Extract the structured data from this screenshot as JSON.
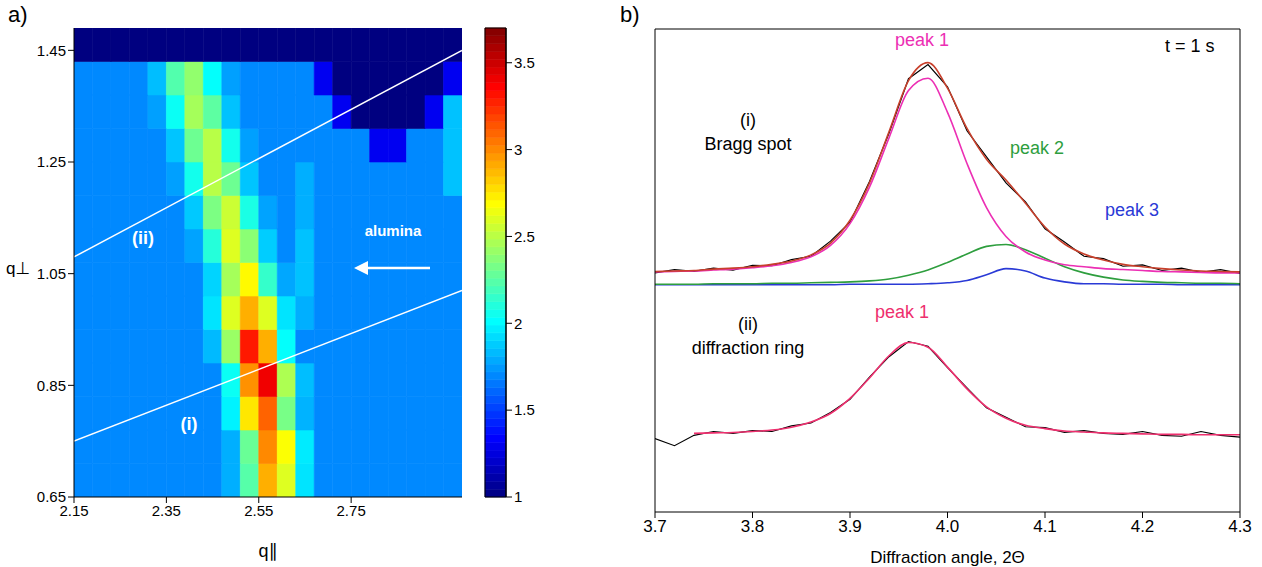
{
  "chart_data": [
    {
      "type": "heatmap",
      "panel": "a)",
      "xlabel": "q∥",
      "ylabel": "q⊥",
      "xlim": [
        2.15,
        2.99
      ],
      "ylim": [
        0.65,
        1.49
      ],
      "xticks": [
        2.15,
        2.35,
        2.55,
        2.75
      ],
      "yticks": [
        0.65,
        0.85,
        1.05,
        1.25,
        1.45
      ],
      "x_edges": [
        2.15,
        2.19,
        2.23,
        2.27,
        2.31,
        2.35,
        2.39,
        2.43,
        2.47,
        2.51,
        2.55,
        2.59,
        2.63,
        2.67,
        2.71,
        2.75,
        2.79,
        2.83,
        2.87,
        2.91,
        2.95,
        2.99
      ],
      "y_edges": [
        0.65,
        0.71,
        0.77,
        0.83,
        0.89,
        0.95,
        1.01,
        1.07,
        1.13,
        1.19,
        1.25,
        1.31,
        1.37,
        1.43,
        1.49
      ],
      "cells": [
        [
          1.7,
          1.7,
          1.7,
          1.7,
          1.7,
          1.7,
          1.7,
          1.7,
          1.8,
          2.24,
          2.9,
          2.6,
          1.94,
          1.7,
          1.7,
          1.7,
          1.7,
          1.7,
          1.7,
          1.7,
          1.7
        ],
        [
          1.7,
          1.7,
          1.7,
          1.7,
          1.7,
          1.7,
          1.7,
          1.7,
          1.8,
          2.29,
          3.0,
          2.68,
          1.96,
          1.7,
          1.7,
          1.7,
          1.7,
          1.7,
          1.7,
          1.7,
          1.7
        ],
        [
          1.7,
          1.7,
          1.7,
          1.7,
          1.7,
          1.7,
          1.7,
          1.7,
          1.98,
          2.75,
          3.1,
          2.33,
          1.81,
          1.7,
          1.7,
          1.7,
          1.7,
          1.7,
          1.7,
          1.7,
          1.7
        ],
        [
          1.7,
          1.7,
          1.7,
          1.7,
          1.7,
          1.7,
          1.7,
          1.7,
          2.04,
          2.98,
          3.4,
          2.47,
          1.84,
          1.7,
          1.7,
          1.7,
          1.7,
          1.7,
          1.7,
          1.7,
          1.7
        ],
        [
          1.7,
          1.7,
          1.7,
          1.7,
          1.7,
          1.7,
          1.7,
          1.83,
          2.42,
          3.3,
          2.9,
          2.02,
          1.7,
          1.7,
          1.7,
          1.7,
          1.7,
          1.7,
          1.7,
          1.7,
          1.7
        ],
        [
          1.7,
          1.7,
          1.7,
          1.7,
          1.7,
          1.7,
          1.7,
          1.94,
          2.6,
          2.9,
          2.6,
          1.94,
          1.8,
          1.7,
          1.7,
          1.7,
          1.7,
          1.7,
          1.7,
          1.7,
          1.7
        ],
        [
          1.7,
          1.7,
          1.7,
          1.7,
          1.7,
          1.7,
          1.7,
          1.9,
          2.45,
          2.7,
          2.15,
          1.78,
          1.85,
          1.7,
          1.7,
          1.7,
          1.7,
          1.7,
          1.7,
          1.7,
          1.7
        ],
        [
          1.7,
          1.7,
          1.7,
          1.7,
          1.7,
          1.7,
          1.77,
          2.11,
          2.6,
          2.38,
          1.88,
          1.7,
          1.85,
          1.7,
          1.7,
          1.7,
          1.7,
          1.7,
          1.7,
          1.7,
          1.7
        ],
        [
          1.7,
          1.7,
          1.7,
          1.7,
          1.7,
          1.7,
          1.87,
          2.34,
          2.55,
          2.08,
          1.77,
          1.7,
          1.8,
          1.7,
          1.7,
          1.7,
          1.7,
          1.7,
          1.7,
          1.7,
          1.7
        ],
        [
          1.7,
          1.7,
          1.7,
          1.7,
          1.7,
          1.76,
          2.06,
          2.5,
          2.3,
          1.86,
          1.7,
          1.7,
          1.8,
          1.7,
          1.7,
          1.7,
          1.7,
          1.7,
          1.7,
          1.7,
          1.85
        ],
        [
          1.7,
          1.7,
          1.7,
          1.7,
          1.7,
          1.86,
          2.3,
          2.5,
          2.06,
          1.76,
          1.7,
          1.7,
          1.7,
          1.7,
          1.7,
          1.7,
          1.3,
          1.3,
          1.7,
          1.7,
          1.85
        ],
        [
          1.7,
          1.7,
          1.7,
          1.7,
          1.76,
          2.04,
          2.45,
          2.26,
          1.85,
          1.7,
          1.7,
          1.7,
          1.7,
          1.7,
          1.3,
          1,
          1,
          1,
          1,
          1.3,
          1.85
        ],
        [
          1.7,
          1.7,
          1.7,
          1.7,
          1.84,
          2.23,
          2.4,
          2.02,
          1.76,
          1.7,
          1.7,
          1.7,
          1.7,
          1.3,
          1,
          1,
          1,
          1,
          1,
          1,
          1.3
        ],
        [
          1,
          1,
          1,
          1,
          1,
          1,
          1,
          1,
          1,
          1,
          1,
          1,
          1,
          1,
          1,
          1,
          1,
          1,
          1,
          1,
          1
        ]
      ],
      "colorbar": {
        "range": [
          1,
          3.7
        ],
        "ticks": [
          1,
          1.5,
          2,
          2.5,
          3,
          3.5
        ]
      },
      "lines": [
        {
          "label": "(i)",
          "x": [
            2.15,
            2.99
          ],
          "y": [
            0.75,
            1.02
          ]
        },
        {
          "label": "(ii)",
          "x": [
            2.15,
            2.99
          ],
          "y": [
            1.08,
            1.45
          ]
        }
      ],
      "annotations": [
        "alumina"
      ]
    },
    {
      "type": "line",
      "panel": "b)",
      "xlabel": "Diffraction angle, 2Θ",
      "annotation": "t = 1 s",
      "x": [
        3.7,
        3.72,
        3.74,
        3.76,
        3.78,
        3.8,
        3.82,
        3.84,
        3.86,
        3.88,
        3.9,
        3.92,
        3.94,
        3.96,
        3.98,
        4,
        4.02,
        4.04,
        4.06,
        4.08,
        4.1,
        4.12,
        4.14,
        4.16,
        4.18,
        4.2,
        4.22,
        4.24,
        4.26,
        4.28,
        4.3
      ],
      "xlim": [
        3.7,
        4.3
      ],
      "xticks": [
        3.7,
        3.8,
        3.9,
        {
          "value": 4,
          "label": "4.0"
        },
        4.1,
        4.2,
        4.3
      ],
      "ylim": [
        0,
        10.2
      ],
      "tick_labels": "x",
      "profiles": [
        {
          "label": "(i)",
          "title": "Bragg spot",
          "series": [
            {
              "color": "#000000",
              "values": [
                5.05,
                5.12,
                5.08,
                5.15,
                5.11,
                5.21,
                5.2,
                5.33,
                5.4,
                5.72,
                6.12,
                6.98,
                8.0,
                9.15,
                9.45,
                8.98,
                8.05,
                7.5,
                6.95,
                6.55,
                5.98,
                5.7,
                5.4,
                5.35,
                5.19,
                5.22,
                5.1,
                5.15,
                5.06,
                5.12,
                5.04
              ]
            },
            {
              "color": "#c8402c",
              "values": [
                5.08,
                5.09,
                5.1,
                5.13,
                5.15,
                5.18,
                5.23,
                5.3,
                5.43,
                5.68,
                6.16,
                6.95,
                8.03,
                9.11,
                9.49,
                8.95,
                8.1,
                7.45,
                7.01,
                6.52,
                6.02,
                5.66,
                5.45,
                5.32,
                5.23,
                5.18,
                5.14,
                5.11,
                5.09,
                5.08,
                5.07
              ]
            },
            {
              "name": "peak 1",
              "color": "#ec2fb4",
              "values": [
                5.07,
                5.08,
                5.09,
                5.11,
                5.13,
                5.16,
                5.2,
                5.27,
                5.39,
                5.63,
                6.09,
                6.86,
                7.9,
                8.9,
                9.16,
                8.44,
                7.36,
                6.43,
                5.82,
                5.49,
                5.32,
                5.22,
                5.18,
                5.14,
                5.12,
                5.1,
                5.08,
                5.07,
                5.06,
                5.05,
                5.05
              ]
            },
            {
              "name": "peak 2",
              "color": "#2e9e3e",
              "values": [
                4.81,
                4.81,
                4.81,
                4.82,
                4.82,
                4.82,
                4.83,
                4.83,
                4.84,
                4.85,
                4.86,
                4.88,
                4.92,
                5.0,
                5.11,
                5.27,
                5.45,
                5.61,
                5.65,
                5.54,
                5.36,
                5.18,
                5.05,
                4.96,
                4.9,
                4.87,
                4.85,
                4.84,
                4.83,
                4.83,
                4.82
              ]
            },
            {
              "name": "peak 3",
              "color": "#2a3ad6",
              "values": [
                4.8,
                4.8,
                4.8,
                4.8,
                4.8,
                4.8,
                4.8,
                4.8,
                4.8,
                4.8,
                4.81,
                4.81,
                4.81,
                4.81,
                4.82,
                4.84,
                4.89,
                5.01,
                5.14,
                5.09,
                4.94,
                4.86,
                4.82,
                4.82,
                4.81,
                4.81,
                4.81,
                4.8,
                4.8,
                4.8,
                4.8
              ]
            }
          ]
        },
        {
          "label": "(ii)",
          "title": "diffraction ring",
          "series": [
            {
              "color": "#000000",
              "values": [
                1.55,
                1.4,
                1.62,
                1.7,
                1.66,
                1.72,
                1.7,
                1.82,
                1.88,
                2.1,
                2.38,
                2.85,
                3.28,
                3.6,
                3.5,
                3.05,
                2.62,
                2.2,
                2.0,
                1.8,
                1.78,
                1.68,
                1.72,
                1.66,
                1.64,
                1.7,
                1.62,
                1.6,
                1.7,
                1.62,
                1.58
              ]
            },
            {
              "name": "peak 1",
              "color": "#ee2f6e",
              "values": [
                null,
                null,
                1.66,
                1.67,
                1.68,
                1.7,
                1.73,
                1.79,
                1.9,
                2.08,
                2.4,
                2.83,
                3.3,
                3.58,
                3.48,
                3.06,
                2.6,
                2.22,
                1.98,
                1.83,
                1.76,
                1.71,
                1.69,
                1.67,
                1.66,
                1.65,
                1.64,
                1.64,
                1.63,
                1.63,
                1.63
              ]
            }
          ]
        }
      ]
    }
  ]
}
